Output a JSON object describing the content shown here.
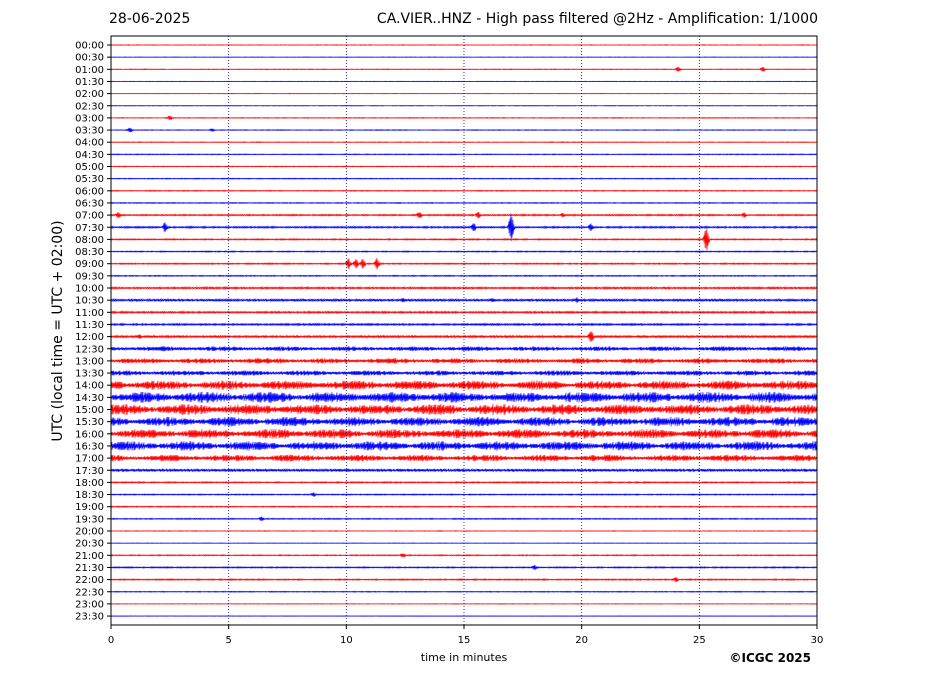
{
  "header": {
    "date": "28-06-2025",
    "title": "CA.VIER..HNZ - High pass filtered @2Hz - Amplification: 1/1000"
  },
  "credit": "©ICGC 2025",
  "colors": {
    "odd_trace": "#ff0000",
    "even_trace": "#0000ff",
    "grid": "#000080"
  },
  "chart_data": {
    "type": "line",
    "title": "CA.VIER..HNZ - High pass filtered @2Hz - Amplification: 1/1000",
    "xlabel": "time in minutes",
    "ylabel": "UTC (local time = UTC + 02:00)",
    "xlim": [
      0,
      30
    ],
    "x_ticks": [
      "0",
      "5",
      "10",
      "15",
      "20",
      "25",
      "30"
    ],
    "x_gridlines": [
      5,
      10,
      15,
      20,
      25
    ],
    "grid": "vertical dotted",
    "rows": [
      "00:00",
      "00:30",
      "01:00",
      "01:30",
      "02:00",
      "02:30",
      "03:00",
      "03:30",
      "04:00",
      "04:30",
      "05:00",
      "05:30",
      "06:00",
      "06:30",
      "07:00",
      "07:30",
      "08:00",
      "08:30",
      "09:00",
      "09:30",
      "10:00",
      "10:30",
      "11:00",
      "11:30",
      "12:00",
      "12:30",
      "13:00",
      "13:30",
      "14:00",
      "14:30",
      "15:00",
      "15:30",
      "16:00",
      "16:30",
      "17:00",
      "17:30",
      "18:00",
      "18:30",
      "19:00",
      "19:30",
      "20:00",
      "20:30",
      "21:00",
      "21:30",
      "22:00",
      "22:30",
      "23:00",
      "23:30"
    ],
    "trace_colors": [
      "#ff0000",
      "#0000ff"
    ],
    "noise_level": [
      0.3,
      0.3,
      0.4,
      0.3,
      0.3,
      0.3,
      0.4,
      0.4,
      0.4,
      0.5,
      0.4,
      0.5,
      0.5,
      0.5,
      0.8,
      0.9,
      0.7,
      0.6,
      0.7,
      0.6,
      1.0,
      1.2,
      1.0,
      1.0,
      1.2,
      1.8,
      2.0,
      2.0,
      3.5,
      4.0,
      4.0,
      3.5,
      3.5,
      3.5,
      2.5,
      1.5,
      0.7,
      0.6,
      0.6,
      0.6,
      0.3,
      0.3,
      0.6,
      0.7,
      0.7,
      0.5,
      0.3,
      0.3
    ],
    "events": [
      {
        "row": "01:00",
        "t": 24.1,
        "amp": 3
      },
      {
        "row": "01:00",
        "t": 27.7,
        "amp": 3
      },
      {
        "row": "03:00",
        "t": 2.5,
        "amp": 3
      },
      {
        "row": "03:30",
        "t": 0.8,
        "amp": 3
      },
      {
        "row": "03:30",
        "t": 4.3,
        "amp": 2
      },
      {
        "row": "07:00",
        "t": 0.3,
        "amp": 4
      },
      {
        "row": "07:00",
        "t": 13.1,
        "amp": 4
      },
      {
        "row": "07:00",
        "t": 15.6,
        "amp": 4
      },
      {
        "row": "07:00",
        "t": 19.2,
        "amp": 3
      },
      {
        "row": "07:00",
        "t": 26.9,
        "amp": 3
      },
      {
        "row": "07:30",
        "t": 2.3,
        "amp": 6
      },
      {
        "row": "07:30",
        "t": 15.4,
        "amp": 6
      },
      {
        "row": "07:30",
        "t": 17.0,
        "amp": 16
      },
      {
        "row": "07:30",
        "t": 20.4,
        "amp": 5
      },
      {
        "row": "08:00",
        "t": 25.3,
        "amp": 14
      },
      {
        "row": "09:00",
        "t": 10.1,
        "amp": 6
      },
      {
        "row": "09:00",
        "t": 10.4,
        "amp": 6
      },
      {
        "row": "09:00",
        "t": 10.7,
        "amp": 6
      },
      {
        "row": "09:00",
        "t": 11.3,
        "amp": 6
      },
      {
        "row": "10:30",
        "t": 12.4,
        "amp": 3
      },
      {
        "row": "10:30",
        "t": 16.2,
        "amp": 3
      },
      {
        "row": "10:30",
        "t": 19.8,
        "amp": 3
      },
      {
        "row": "12:00",
        "t": 20.4,
        "amp": 7
      },
      {
        "row": "12:00",
        "t": 1.2,
        "amp": 3
      },
      {
        "row": "14:00",
        "t": 29.5,
        "amp": 6
      },
      {
        "row": "16:00",
        "t": 7.4,
        "amp": 6
      },
      {
        "row": "16:30",
        "t": 29.8,
        "amp": 5
      },
      {
        "row": "17:00",
        "t": 20.5,
        "amp": 5
      },
      {
        "row": "18:30",
        "t": 8.6,
        "amp": 3
      },
      {
        "row": "19:30",
        "t": 6.4,
        "amp": 3
      },
      {
        "row": "21:00",
        "t": 12.4,
        "amp": 3
      },
      {
        "row": "21:30",
        "t": 18.0,
        "amp": 3
      },
      {
        "row": "22:00",
        "t": 24.0,
        "amp": 3
      }
    ]
  }
}
